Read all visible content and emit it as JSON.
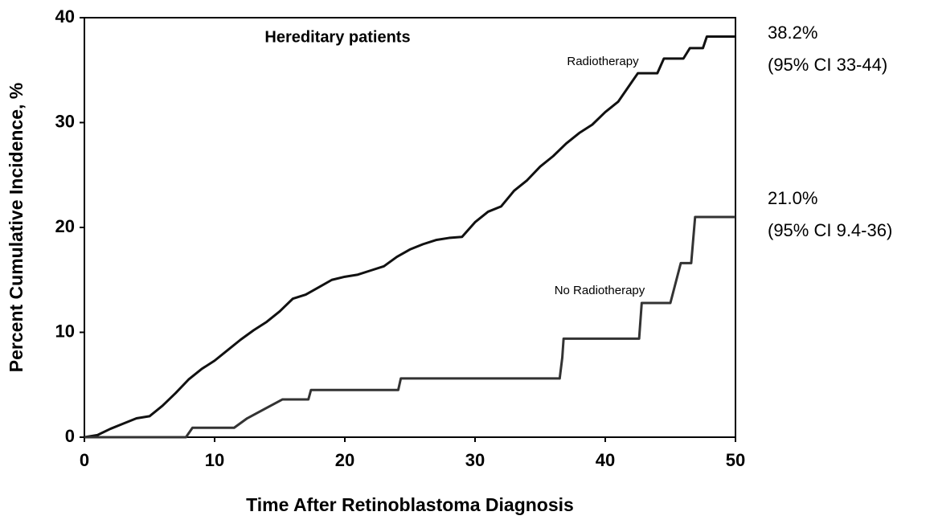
{
  "chart_data": {
    "type": "line",
    "title": "Hereditary patients",
    "x_label": "Time After Retinoblastoma Diagnosis",
    "y_label": "Percent Cumulative Incidence, %",
    "xlim": [
      0,
      50
    ],
    "ylim": [
      0,
      40
    ],
    "xticks": [
      0,
      10,
      20,
      30,
      40,
      50
    ],
    "yticks": [
      0,
      10,
      20,
      30,
      40
    ],
    "series": [
      {
        "name": "Radiotherapy",
        "color": "#111111",
        "x": [
          0,
          1,
          2,
          3,
          4,
          5,
          6,
          7,
          8,
          9,
          10,
          11,
          12,
          13,
          14,
          15,
          16,
          17,
          18,
          19,
          20,
          21,
          22,
          23,
          24,
          25,
          26,
          27,
          28,
          29,
          30,
          31,
          32,
          33,
          34,
          35,
          36,
          37,
          38,
          39,
          40,
          41,
          42,
          42.5,
          44,
          44.5,
          46,
          46.5,
          47.5,
          47.8,
          50
        ],
        "values": [
          0,
          0.2,
          0.8,
          1.3,
          1.8,
          2.0,
          3.0,
          4.2,
          5.5,
          6.5,
          7.3,
          8.3,
          9.3,
          10.2,
          11.0,
          12.0,
          13.2,
          13.6,
          14.3,
          15.0,
          15.3,
          15.5,
          15.9,
          16.3,
          17.2,
          17.9,
          18.4,
          18.8,
          19.0,
          19.1,
          20.5,
          21.5,
          22.0,
          23.5,
          24.5,
          25.8,
          26.8,
          28.0,
          29.0,
          29.8,
          31.0,
          32.0,
          33.8,
          34.7,
          34.7,
          36.1,
          36.1,
          37.1,
          37.1,
          38.2,
          38.2
        ]
      },
      {
        "name": "No Radiotherapy",
        "color": "#333333",
        "x": [
          0,
          7.8,
          8.3,
          11.5,
          12.5,
          15.2,
          17.2,
          17.4,
          24.1,
          24.3,
          36.5,
          36.7,
          36.8,
          42.6,
          42.8,
          45,
          45.8,
          46.6,
          46.9,
          50
        ],
        "values": [
          0,
          0,
          0.9,
          0.9,
          1.8,
          3.6,
          3.6,
          4.5,
          4.5,
          5.6,
          5.6,
          7.6,
          9.4,
          9.4,
          12.8,
          12.8,
          16.6,
          16.6,
          21.0,
          21.0
        ]
      }
    ],
    "annotations": [
      "38.2%",
      "(95% CI 33-44)",
      "21.0%",
      "(95% CI 9.4-36)"
    ]
  }
}
